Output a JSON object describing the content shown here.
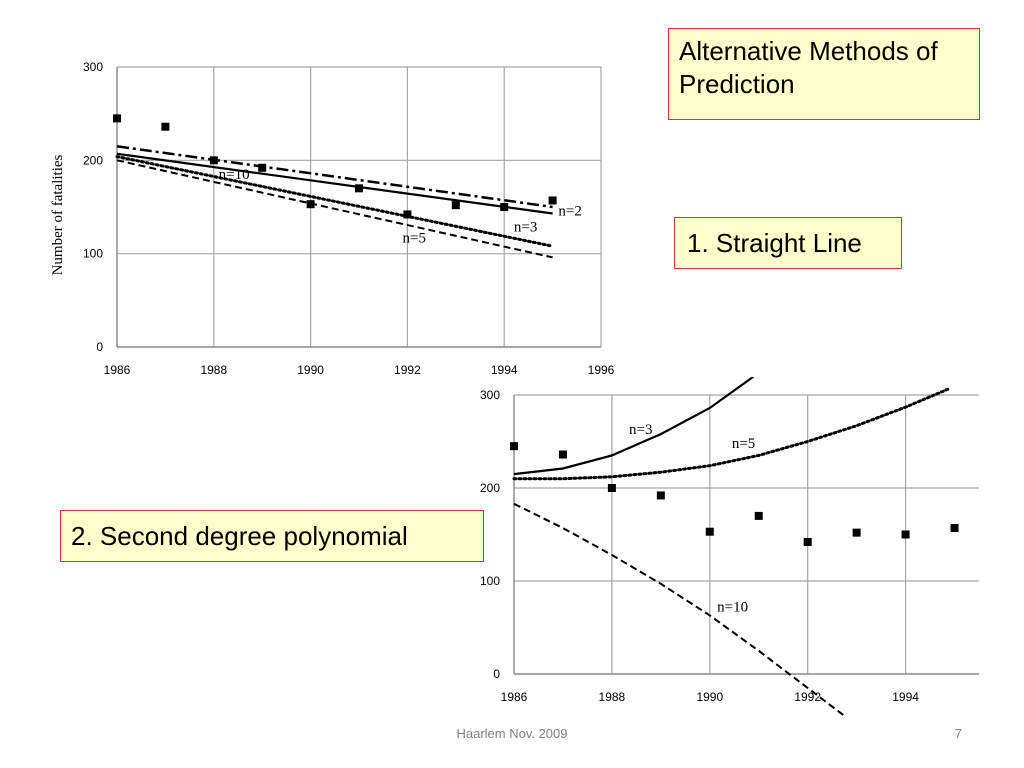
{
  "slide": {
    "title": "Alternative Methods of Prediction",
    "method1_label": "1. Straight Line",
    "method2_label": "2. Second degree polynomial",
    "footer": "Haarlem Nov. 2009",
    "page_number": "7"
  },
  "colors": {
    "callout_bg": "#ffffcc",
    "callout_border": "#e03030",
    "grid": "#a6a6a6",
    "series": "#000000"
  },
  "chart_data": [
    {
      "type": "line",
      "title": "",
      "xlabel": "",
      "ylabel": "Number of fatalities",
      "xlim": [
        1986,
        1996
      ],
      "ylim": [
        0,
        300
      ],
      "x_ticks": [
        1986,
        1988,
        1990,
        1992,
        1994,
        1996
      ],
      "y_ticks": [
        0,
        100,
        200,
        300
      ],
      "grid": true,
      "points": {
        "x": [
          1986,
          1987,
          1988,
          1989,
          1990,
          1991,
          1992,
          1993,
          1994,
          1995
        ],
        "y": [
          245,
          236,
          200,
          192,
          153,
          170,
          142,
          152,
          150,
          157
        ]
      },
      "series": [
        {
          "name": "n=10",
          "dash": "dash-dot",
          "x": [
            1986,
            1995
          ],
          "y": [
            215,
            150
          ]
        },
        {
          "name": "n=2",
          "dash": "solid",
          "x": [
            1986,
            1995
          ],
          "y": [
            207,
            143
          ]
        },
        {
          "name": "n=3",
          "dash": "dotted",
          "x": [
            1986,
            1995
          ],
          "y": [
            204,
            108
          ]
        },
        {
          "name": "n=5",
          "dash": "dashed",
          "x": [
            1986,
            1995
          ],
          "y": [
            200,
            96
          ]
        }
      ]
    },
    {
      "type": "line",
      "title": "",
      "xlabel": "",
      "ylabel": "",
      "xlim": [
        1986,
        1995.5
      ],
      "ylim": [
        0,
        300
      ],
      "x_ticks": [
        1986,
        1988,
        1990,
        1992,
        1994
      ],
      "y_ticks": [
        0,
        100,
        200,
        300
      ],
      "grid": true,
      "points": {
        "x": [
          1986,
          1987,
          1988,
          1989,
          1990,
          1991,
          1992,
          1993,
          1994,
          1995
        ],
        "y": [
          245,
          236,
          200,
          192,
          153,
          170,
          142,
          152,
          150,
          157
        ]
      },
      "series": [
        {
          "name": "n=3",
          "dash": "solid",
          "x": [
            1986,
            1987,
            1988,
            1989,
            1990,
            1990.9
          ],
          "y": [
            215,
            221,
            235,
            258,
            286,
            320
          ]
        },
        {
          "name": "n=5",
          "dash": "dotted",
          "x": [
            1986,
            1987,
            1988,
            1989,
            1990,
            1991,
            1992,
            1993,
            1994,
            1994.9
          ],
          "y": [
            210,
            210,
            212,
            217,
            224,
            235,
            250,
            267,
            287,
            307
          ]
        },
        {
          "name": "n=10",
          "dash": "dashed",
          "x": [
            1986,
            1987,
            1988,
            1989,
            1990,
            1991,
            1992,
            1993
          ],
          "y": [
            183,
            157,
            128,
            97,
            63,
            25,
            -15,
            -55
          ]
        }
      ]
    }
  ]
}
